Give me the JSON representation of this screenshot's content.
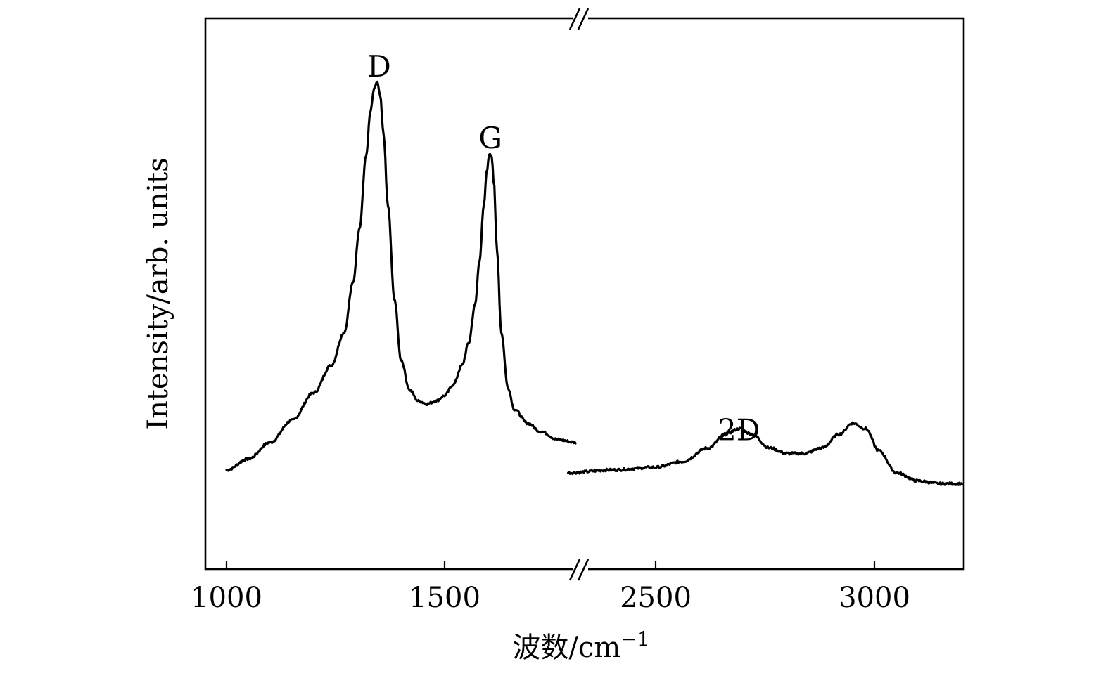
{
  "chart_data": {
    "type": "line",
    "title": "",
    "xlabel": "波数/cm",
    "xlabel_superscript": "−1",
    "ylabel": "Intensity/arb. units",
    "x_axis_break": [
      1800,
      2300
    ],
    "xlim_left": [
      950,
      1800
    ],
    "xlim_right": [
      2300,
      3200
    ],
    "ylim": [
      0,
      100
    ],
    "y_ticks_shown": false,
    "grid": false,
    "x_ticks": [
      1000,
      1500,
      2500,
      3000
    ],
    "x_tick_labels": [
      "1000",
      "1500",
      "2500",
      "3000"
    ],
    "annotations": [
      {
        "label": "D",
        "x": 1350,
        "y": 93
      },
      {
        "label": "G",
        "x": 1605,
        "y": 80
      },
      {
        "label": "2D",
        "x": 2690,
        "y": 27
      }
    ],
    "series": [
      {
        "segment": "left",
        "x": [
          1000,
          1050,
          1100,
          1150,
          1200,
          1240,
          1270,
          1290,
          1305,
          1320,
          1330,
          1338,
          1345,
          1352,
          1360,
          1370,
          1385,
          1400,
          1420,
          1440,
          1460,
          1480,
          1500,
          1520,
          1540,
          1555,
          1570,
          1580,
          1590,
          1597,
          1603,
          1608,
          1613,
          1620,
          1630,
          1645,
          1660,
          1690,
          1720,
          1760,
          1800
        ],
        "values": [
          18,
          20,
          23,
          27,
          32,
          37,
          43,
          52,
          62,
          75,
          83,
          87,
          88.5,
          86,
          79,
          66,
          49,
          38,
          32.5,
          30.5,
          30,
          30.5,
          31.5,
          33.5,
          37,
          41,
          48,
          56,
          66,
          72.5,
          75.5,
          75,
          70,
          58,
          43,
          33,
          29,
          26.5,
          25,
          23.5,
          23
        ]
      },
      {
        "segment": "right",
        "x": [
          2300,
          2400,
          2500,
          2560,
          2620,
          2660,
          2690,
          2720,
          2760,
          2800,
          2840,
          2880,
          2920,
          2950,
          2980,
          3010,
          3050,
          3100,
          3150,
          3200
        ],
        "values": [
          17.5,
          18,
          18.5,
          19.5,
          22,
          24.5,
          25.5,
          24.5,
          22,
          21,
          21,
          22,
          24.5,
          26.5,
          25.5,
          21.5,
          17.5,
          16,
          15.5,
          15.5
        ]
      }
    ]
  }
}
